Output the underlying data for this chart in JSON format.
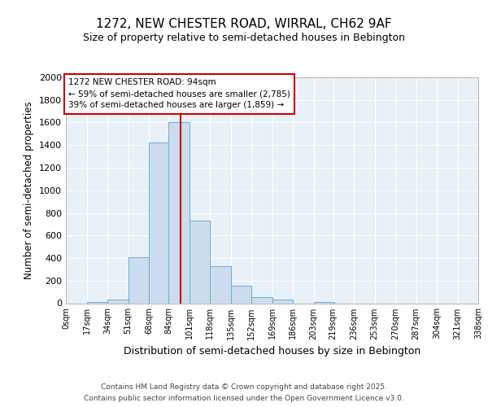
{
  "title_line1": "1272, NEW CHESTER ROAD, WIRRAL, CH62 9AF",
  "title_line2": "Size of property relative to semi-detached houses in Bebington",
  "xlabel": "Distribution of semi-detached houses by size in Bebington",
  "ylabel": "Number of semi-detached properties",
  "bin_labels": [
    "0sqm",
    "17sqm",
    "34sqm",
    "51sqm",
    "68sqm",
    "84sqm",
    "101sqm",
    "118sqm",
    "135sqm",
    "152sqm",
    "169sqm",
    "186sqm",
    "203sqm",
    "219sqm",
    "236sqm",
    "253sqm",
    "270sqm",
    "287sqm",
    "304sqm",
    "321sqm",
    "338sqm"
  ],
  "bin_edges": [
    0,
    17,
    34,
    51,
    68,
    84,
    101,
    118,
    135,
    152,
    169,
    186,
    203,
    219,
    236,
    253,
    270,
    287,
    304,
    321,
    338
  ],
  "bar_heights": [
    0,
    10,
    35,
    410,
    1420,
    1600,
    730,
    330,
    155,
    55,
    35,
    0,
    10,
    0,
    0,
    0,
    0,
    0,
    0,
    0
  ],
  "bar_color": "#ccdded",
  "bar_edge_color": "#6aaed6",
  "plot_bg_color": "#e8f0f8",
  "fig_bg_color": "#ffffff",
  "grid_color": "#ffffff",
  "red_line_x": 94,
  "annotation_title": "1272 NEW CHESTER ROAD: 94sqm",
  "annotation_line1": "← 59% of semi-detached houses are smaller (2,785)",
  "annotation_line2": "39% of semi-detached houses are larger (1,859) →",
  "annotation_box_facecolor": "#ffffff",
  "annotation_border_color": "#cc0000",
  "ylim": [
    0,
    2000
  ],
  "yticks": [
    0,
    200,
    400,
    600,
    800,
    1000,
    1200,
    1400,
    1600,
    1800,
    2000
  ],
  "footer_line1": "Contains HM Land Registry data © Crown copyright and database right 2025.",
  "footer_line2": "Contains public sector information licensed under the Open Government Licence v3.0."
}
